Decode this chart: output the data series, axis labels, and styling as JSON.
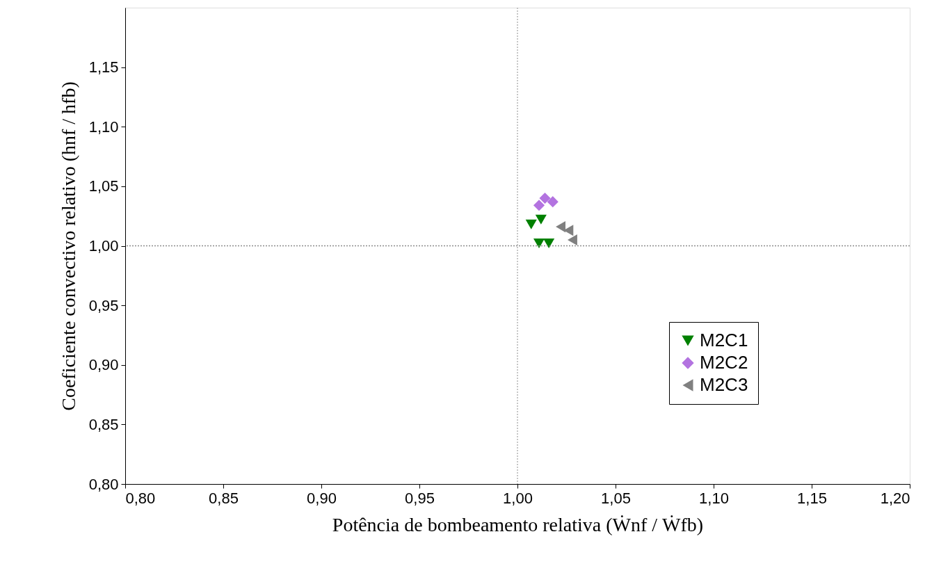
{
  "chart_data": {
    "type": "scatter",
    "xlabel": "Potência de bombeamento relativa (Ẇnf / Ẇfb)",
    "ylabel": "Coeficiente convectivo relativo (hnf / hfb)",
    "xlim": [
      0.8,
      1.2
    ],
    "ylim": [
      0.8,
      1.2
    ],
    "xticks": [
      {
        "value": 0.8,
        "label": "0,80"
      },
      {
        "value": 0.85,
        "label": "0,85"
      },
      {
        "value": 0.9,
        "label": "0,90"
      },
      {
        "value": 0.95,
        "label": "0,95"
      },
      {
        "value": 1.0,
        "label": "1,00"
      },
      {
        "value": 1.05,
        "label": "1,05"
      },
      {
        "value": 1.1,
        "label": "1,10"
      },
      {
        "value": 1.15,
        "label": "1,15"
      },
      {
        "value": 1.2,
        "label": "1,20"
      }
    ],
    "yticks": [
      {
        "value": 0.8,
        "label": "0,80"
      },
      {
        "value": 0.85,
        "label": "0,85"
      },
      {
        "value": 0.9,
        "label": "0,90"
      },
      {
        "value": 0.95,
        "label": "0,95"
      },
      {
        "value": 1.0,
        "label": "1,00"
      },
      {
        "value": 1.05,
        "label": "1,05"
      },
      {
        "value": 1.1,
        "label": "1,10"
      },
      {
        "value": 1.15,
        "label": "1,15"
      }
    ],
    "grid": false,
    "legend": "bottom right",
    "ref_lines": [
      {
        "axis": "x",
        "value": 1.0,
        "color": "#b4b4b4",
        "line_style": "dotted"
      },
      {
        "axis": "y",
        "value": 1.0,
        "color": "#8c8c8c",
        "line_style": "dotted"
      }
    ],
    "series": [
      {
        "name": "M2C1",
        "color": "#008000",
        "marker": "triangle-down",
        "x": [
          1.007,
          1.012,
          1.011,
          1.016
        ],
        "values": [
          1.018,
          1.022,
          1.002,
          1.002
        ]
      },
      {
        "name": "M2C2",
        "color": "#b373e0",
        "marker": "diamond",
        "x": [
          1.014,
          1.018,
          1.011
        ],
        "values": [
          1.04,
          1.037,
          1.034
        ]
      },
      {
        "name": "M2C3",
        "color": "#808080",
        "marker": "triangle-left",
        "x": [
          1.022,
          1.026,
          1.028
        ],
        "values": [
          1.016,
          1.013,
          1.005
        ]
      }
    ]
  }
}
